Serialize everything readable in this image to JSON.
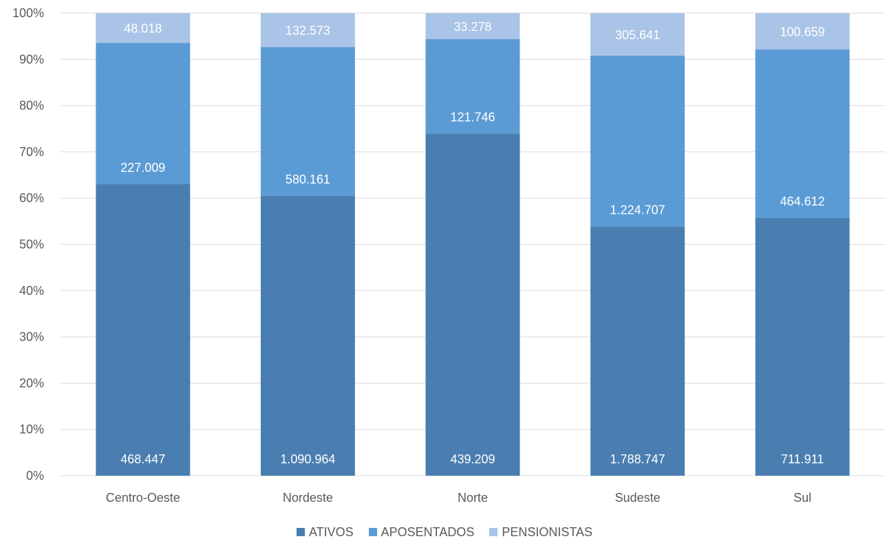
{
  "chart_data": {
    "type": "bar",
    "stacked": true,
    "normalized": true,
    "categories": [
      "Centro-Oeste",
      "Nordeste",
      "Norte",
      "Sudeste",
      "Sul"
    ],
    "series": [
      {
        "name": "ATIVOS",
        "color": "#4a7eb0",
        "values": [
          468447,
          1090964,
          439209,
          1788747,
          711911
        ],
        "labels": [
          "468.447",
          "1.090.964",
          "439.209",
          "1.788.747",
          "711.911"
        ]
      },
      {
        "name": "APOSENTADOS",
        "color": "#5b9bd5",
        "values": [
          227009,
          580161,
          121746,
          1224707,
          464612
        ],
        "labels": [
          "227.009",
          "580.161",
          "121.746",
          "1.224.707",
          "464.612"
        ]
      },
      {
        "name": "PENSIONISTAS",
        "color": "#a9c4e6",
        "values": [
          48018,
          132573,
          33278,
          305641,
          100659
        ],
        "labels": [
          "48.018",
          "132.573",
          "33.278",
          "305.641",
          "100.659"
        ]
      }
    ],
    "y_ticks": [
      "0%",
      "10%",
      "20%",
      "30%",
      "40%",
      "50%",
      "60%",
      "70%",
      "80%",
      "90%",
      "100%"
    ],
    "ylim": [
      0,
      100
    ],
    "grid": true,
    "legend_position": "bottom"
  }
}
